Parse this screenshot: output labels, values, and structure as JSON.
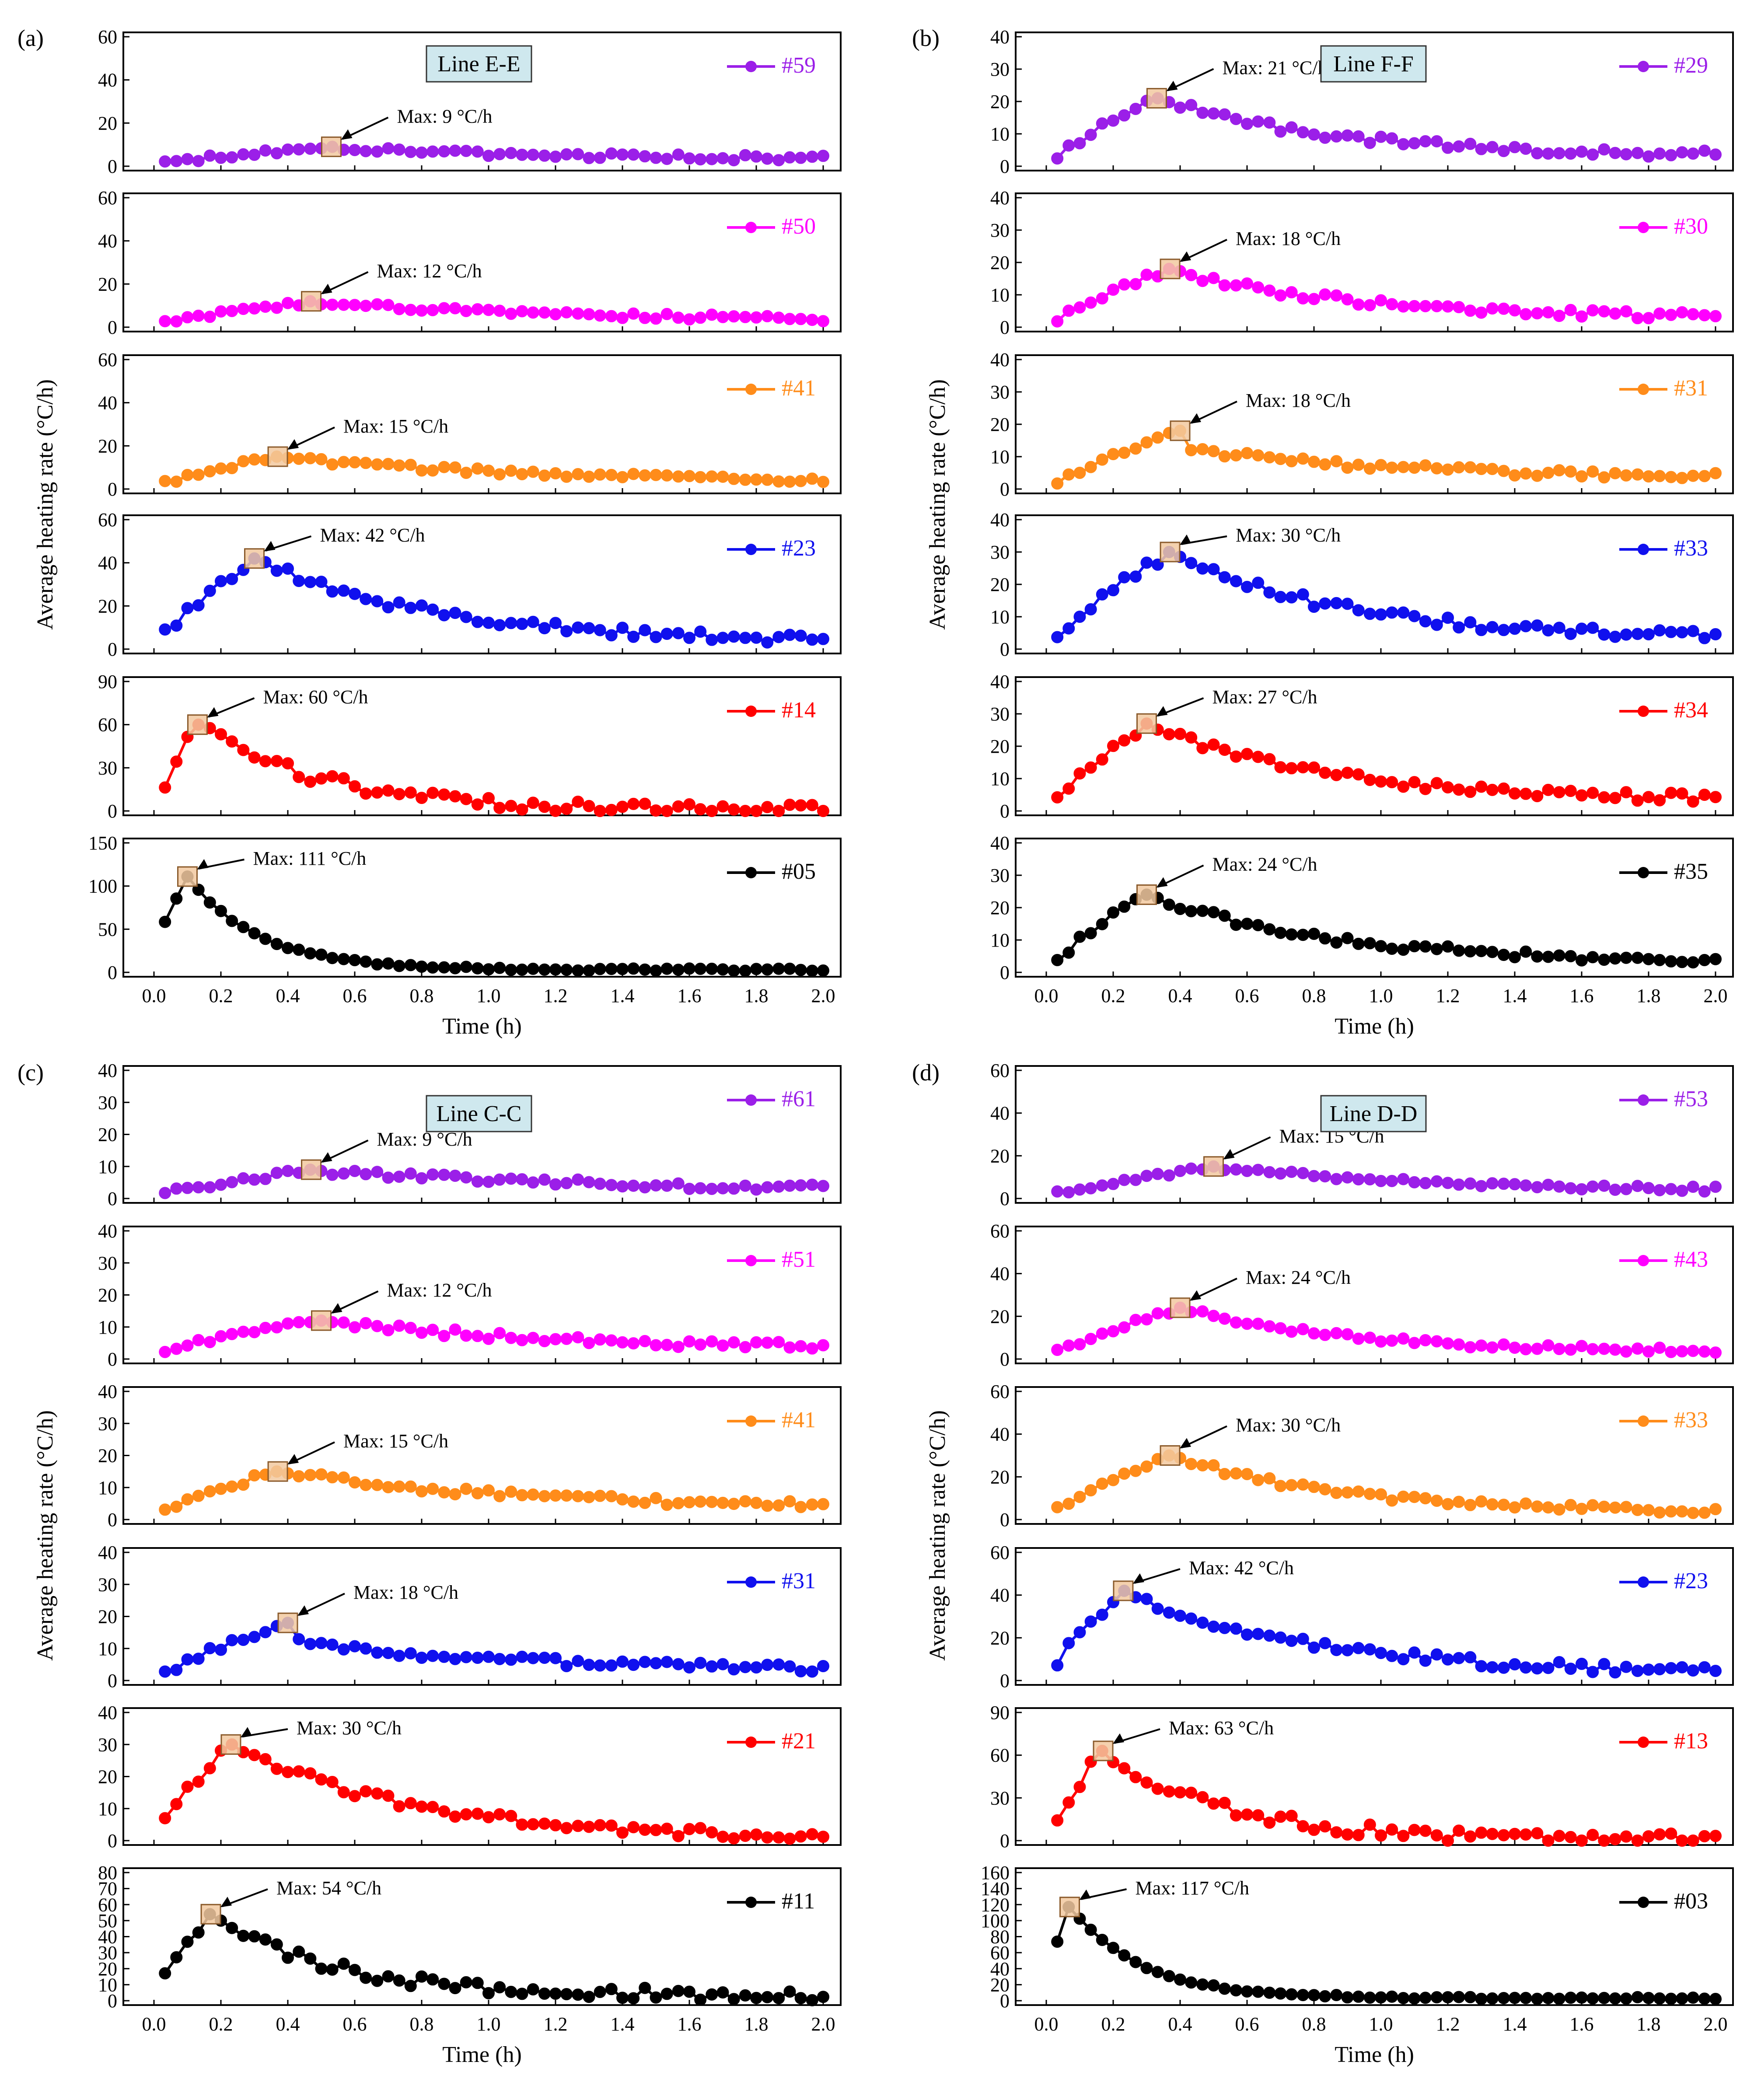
{
  "figure": {
    "ylabel": "Average heating rate (°C/h)",
    "xlabel": "Time (h)",
    "xticks": [
      "0.0",
      "0.2",
      "0.4",
      "0.6",
      "0.8",
      "1.0",
      "1.2",
      "1.4",
      "1.6",
      "1.8",
      "2.0"
    ],
    "colors": {
      "purple": "#9b1fe8",
      "magenta": "#ff00ff",
      "orange": "#ff8c1a",
      "blue": "#1010ee",
      "red": "#ff0000",
      "black": "#000000",
      "box_fill": "#f2c9a0",
      "box_stroke": "#8a5a2b",
      "linebox_fill": "#cfe8ee"
    }
  },
  "chart_data": [
    {
      "panel": "(a)",
      "type": "line",
      "line_label": "Line E-E",
      "xlabel": "Time (h)",
      "ylabel": "Average heating rate (°C/h)",
      "xlim": [
        0,
        2
      ],
      "subplots": [
        {
          "name": "#59",
          "color": "purple",
          "ylim": [
            0,
            60
          ],
          "yticks": [
            "0",
            "20",
            "40",
            "60"
          ],
          "max_label": "Max: 9 °C/h",
          "max": 9,
          "peak_time": 0.53,
          "final": 3,
          "kind": "flat"
        },
        {
          "name": "#50",
          "color": "magenta",
          "ylim": [
            0,
            60
          ],
          "yticks": [
            "0",
            "20",
            "40",
            "60"
          ],
          "max_label": "Max: 12 °C/h",
          "max": 12,
          "peak_time": 0.47,
          "final": 3,
          "kind": "flat"
        },
        {
          "name": "#41",
          "color": "orange",
          "ylim": [
            0,
            60
          ],
          "yticks": [
            "0",
            "20",
            "40",
            "60"
          ],
          "max_label": "Max: 15 °C/h",
          "max": 15,
          "peak_time": 0.37,
          "final": 3,
          "kind": "flat"
        },
        {
          "name": "#23",
          "color": "blue",
          "ylim": [
            0,
            60
          ],
          "yticks": [
            "0",
            "20",
            "40",
            "60"
          ],
          "max_label": "Max: 42 °C/h",
          "max": 42,
          "peak_time": 0.3,
          "final": 3,
          "kind": "peak"
        },
        {
          "name": "#14",
          "color": "red",
          "ylim": [
            0,
            90
          ],
          "yticks": [
            "0",
            "30",
            "60",
            "90"
          ],
          "max_label": "Max: 60 °C/h",
          "max": 60,
          "peak_time": 0.13,
          "final": 0,
          "kind": "sharp"
        },
        {
          "name": "#05",
          "color": "black",
          "ylim": [
            0,
            150
          ],
          "yticks": [
            "0",
            "50",
            "100",
            "150"
          ],
          "max_label": "Max: 111 °C/h",
          "max": 111,
          "peak_time": 0.1,
          "final": 3,
          "kind": "spike"
        }
      ]
    },
    {
      "panel": "(b)",
      "type": "line",
      "line_label": "Line F-F",
      "xlabel": "Time (h)",
      "ylabel": "Average heating rate (°C/h)",
      "xlim": [
        0,
        2
      ],
      "subplots": [
        {
          "name": "#29",
          "color": "purple",
          "ylim": [
            0,
            40
          ],
          "yticks": [
            "0",
            "10",
            "20",
            "30",
            "40"
          ],
          "max_label": "Max: 21 °C/h",
          "max": 21,
          "peak_time": 0.33,
          "final": 3,
          "kind": "peak"
        },
        {
          "name": "#30",
          "color": "magenta",
          "ylim": [
            0,
            40
          ],
          "yticks": [
            "0",
            "10",
            "20",
            "30",
            "40"
          ],
          "max_label": "Max: 18 °C/h",
          "max": 18,
          "peak_time": 0.37,
          "final": 3,
          "kind": "peak"
        },
        {
          "name": "#31",
          "color": "orange",
          "ylim": [
            0,
            40
          ],
          "yticks": [
            "0",
            "10",
            "20",
            "30",
            "40"
          ],
          "max_label": "Max: 18 °C/h",
          "max": 18,
          "peak_time": 0.4,
          "final": 3,
          "kind": "plateau"
        },
        {
          "name": "#33",
          "color": "blue",
          "ylim": [
            0,
            40
          ],
          "yticks": [
            "0",
            "10",
            "20",
            "30",
            "40"
          ],
          "max_label": "Max: 30 °C/h",
          "max": 30,
          "peak_time": 0.37,
          "final": 3,
          "kind": "peak"
        },
        {
          "name": "#34",
          "color": "red",
          "ylim": [
            0,
            40
          ],
          "yticks": [
            "0",
            "10",
            "20",
            "30",
            "40"
          ],
          "max_label": "Max: 27 °C/h",
          "max": 27,
          "peak_time": 0.3,
          "final": 3,
          "kind": "peak"
        },
        {
          "name": "#35",
          "color": "black",
          "ylim": [
            0,
            40
          ],
          "yticks": [
            "0",
            "10",
            "20",
            "30",
            "40"
          ],
          "max_label": "Max: 24 °C/h",
          "max": 24,
          "peak_time": 0.3,
          "final": 3,
          "kind": "peak"
        }
      ]
    },
    {
      "panel": "(c)",
      "type": "line",
      "line_label": "Line C-C",
      "xlabel": "Time (h)",
      "ylabel": "Average heating rate (°C/h)",
      "xlim": [
        0,
        2
      ],
      "subplots": [
        {
          "name": "#61",
          "color": "purple",
          "ylim": [
            0,
            40
          ],
          "yticks": [
            "0",
            "10",
            "20",
            "30",
            "40"
          ],
          "max_label": "Max: 9 °C/h",
          "max": 9,
          "peak_time": 0.47,
          "final": 3,
          "kind": "flat"
        },
        {
          "name": "#51",
          "color": "magenta",
          "ylim": [
            0,
            40
          ],
          "yticks": [
            "0",
            "10",
            "20",
            "30",
            "40"
          ],
          "max_label": "Max: 12 °C/h",
          "max": 12,
          "peak_time": 0.5,
          "final": 3,
          "kind": "flat"
        },
        {
          "name": "#41",
          "color": "orange",
          "ylim": [
            0,
            40
          ],
          "yticks": [
            "0",
            "10",
            "20",
            "30",
            "40"
          ],
          "max_label": "Max: 15 °C/h",
          "max": 15,
          "peak_time": 0.37,
          "final": 3,
          "kind": "flat"
        },
        {
          "name": "#31",
          "color": "blue",
          "ylim": [
            0,
            40
          ],
          "yticks": [
            "0",
            "10",
            "20",
            "30",
            "40"
          ],
          "max_label": "Max: 18 °C/h",
          "max": 18,
          "peak_time": 0.4,
          "final": 3,
          "kind": "plateau"
        },
        {
          "name": "#21",
          "color": "red",
          "ylim": [
            0,
            40
          ],
          "yticks": [
            "0",
            "10",
            "20",
            "30",
            "40"
          ],
          "max_label": "Max: 30 °C/h",
          "max": 30,
          "peak_time": 0.23,
          "final": 0,
          "kind": "peak"
        },
        {
          "name": "#11",
          "color": "black",
          "ylim": [
            0,
            80
          ],
          "yticks": [
            "0",
            "10",
            "20",
            "30",
            "40",
            "50",
            "60",
            "70",
            "80"
          ],
          "max_label": "Max: 54 °C/h",
          "max": 54,
          "peak_time": 0.17,
          "final": 3,
          "kind": "sharp"
        }
      ]
    },
    {
      "panel": "(d)",
      "type": "line",
      "line_label": "Line D-D",
      "xlabel": "Time (h)",
      "ylabel": "Average heating rate (°C/h)",
      "xlim": [
        0,
        2
      ],
      "subplots": [
        {
          "name": "#53",
          "color": "purple",
          "ylim": [
            0,
            60
          ],
          "yticks": [
            "0",
            "20",
            "40",
            "60"
          ],
          "max_label": "Max: 15 °C/h",
          "max": 15,
          "peak_time": 0.5,
          "final": 3,
          "kind": "flat"
        },
        {
          "name": "#43",
          "color": "magenta",
          "ylim": [
            0,
            60
          ],
          "yticks": [
            "0",
            "20",
            "40",
            "60"
          ],
          "max_label": "Max: 24 °C/h",
          "max": 24,
          "peak_time": 0.4,
          "final": 3,
          "kind": "peak"
        },
        {
          "name": "#33",
          "color": "orange",
          "ylim": [
            0,
            60
          ],
          "yticks": [
            "0",
            "20",
            "40",
            "60"
          ],
          "max_label": "Max: 30 °C/h",
          "max": 30,
          "peak_time": 0.37,
          "final": 3,
          "kind": "peak"
        },
        {
          "name": "#23",
          "color": "blue",
          "ylim": [
            0,
            60
          ],
          "yticks": [
            "0",
            "20",
            "40",
            "60"
          ],
          "max_label": "Max: 42 °C/h",
          "max": 42,
          "peak_time": 0.23,
          "final": 3,
          "kind": "peak"
        },
        {
          "name": "#13",
          "color": "red",
          "ylim": [
            0,
            90
          ],
          "yticks": [
            "0",
            "30",
            "60",
            "90"
          ],
          "max_label": "Max: 63 °C/h",
          "max": 63,
          "peak_time": 0.17,
          "final": 0,
          "kind": "sharp"
        },
        {
          "name": "#03",
          "color": "black",
          "ylim": [
            0,
            160
          ],
          "yticks": [
            "0",
            "20",
            "40",
            "60",
            "80",
            "100",
            "120",
            "140",
            "160"
          ],
          "max_label": "Max: 117 °C/h",
          "max": 117,
          "peak_time": 0.07,
          "final": 3,
          "kind": "spike"
        }
      ]
    }
  ]
}
